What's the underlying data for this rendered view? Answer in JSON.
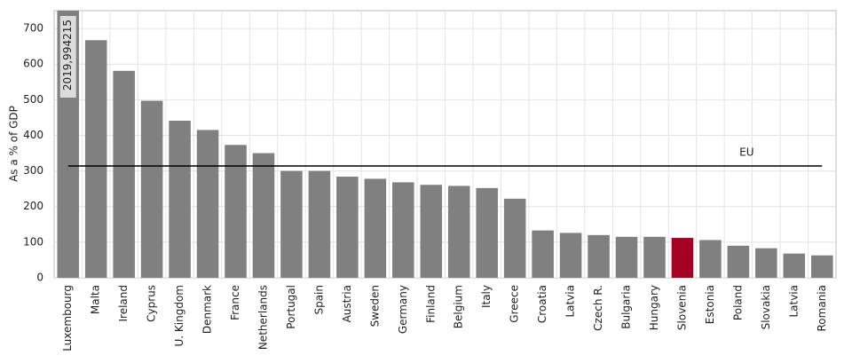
{
  "chart_data": {
    "type": "bar",
    "y_label": "As a % of GDP",
    "categories": [
      "Luxembourg",
      "Malta",
      "Ireland",
      "Cyprus",
      "U. Kingdom",
      "Denmark",
      "France",
      "Netherlands",
      "Portugal",
      "Spain",
      "Austria",
      "Sweden",
      "Germany",
      "Finland",
      "Belgium",
      "Italy",
      "Greece",
      "Croatia",
      "Latvia",
      "Czech R.",
      "Bulgaria",
      "Hungary",
      "Slovenia",
      "Estonia",
      "Poland",
      "Slovakia",
      "Latvia",
      "Romania"
    ],
    "values": [
      2019.994215,
      667,
      581,
      497,
      441,
      415,
      373,
      350,
      300,
      300,
      284,
      278,
      268,
      261,
      258,
      252,
      222,
      133,
      126,
      120,
      115,
      115,
      112,
      106,
      90,
      83,
      68,
      63
    ],
    "value_labels": [
      "2019,994215",
      null,
      null,
      null,
      null,
      null,
      null,
      null,
      null,
      null,
      null,
      null,
      null,
      null,
      null,
      null,
      null,
      null,
      null,
      null,
      null,
      null,
      null,
      null,
      null,
      null,
      null,
      null
    ],
    "colors": [
      "#808080",
      "#808080",
      "#808080",
      "#808080",
      "#808080",
      "#808080",
      "#808080",
      "#808080",
      "#808080",
      "#808080",
      "#808080",
      "#808080",
      "#808080",
      "#808080",
      "#808080",
      "#808080",
      "#808080",
      "#808080",
      "#808080",
      "#808080",
      "#808080",
      "#808080",
      "#a50021",
      "#808080",
      "#808080",
      "#808080",
      "#808080",
      "#808080"
    ],
    "reference_lines": [
      {
        "label": "EU",
        "value": 314,
        "color": "#000000"
      }
    ],
    "ylim": [
      0,
      750
    ],
    "yticks": [
      0,
      100,
      200,
      300,
      400,
      500,
      600,
      700
    ],
    "grid": true
  }
}
